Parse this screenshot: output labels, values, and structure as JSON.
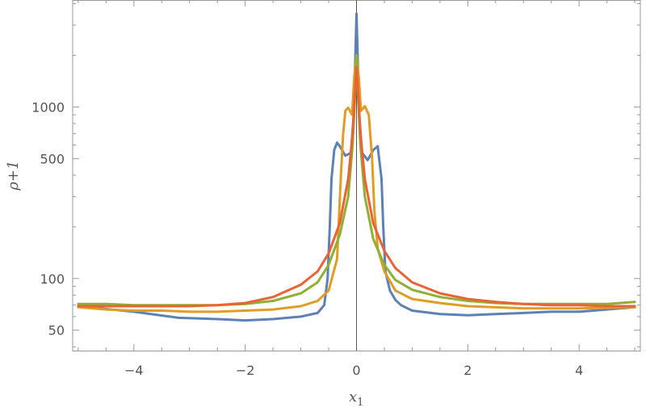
{
  "chart_data": {
    "type": "line",
    "title": "",
    "xlabel": "x",
    "xlabel_subscript": "1",
    "ylabel": "ρ+1",
    "xlim": [
      -5.1,
      5.1
    ],
    "ylim": [
      38,
      4200
    ],
    "yscale": "log",
    "grid": false,
    "legend": "none",
    "x_ticks": [
      -4,
      -2,
      0,
      2,
      4
    ],
    "x_tick_labels": [
      "−4",
      "−2",
      "0",
      "2",
      "4"
    ],
    "y_ticks": [
      50,
      100,
      500,
      1000
    ],
    "y_tick_labels": [
      "50",
      "100",
      "500",
      "1000"
    ],
    "colors": [
      "#5e81b5",
      "#e19c24",
      "#8fb032",
      "#eb6235"
    ],
    "series": [
      {
        "color": "#5e81b5",
        "points": [
          [
            -5,
            69
          ],
          [
            -4,
            64
          ],
          [
            -3.2,
            59
          ],
          [
            -2.5,
            58
          ],
          [
            -2,
            57
          ],
          [
            -1.5,
            58
          ],
          [
            -1,
            60
          ],
          [
            -0.7,
            63
          ],
          [
            -0.58,
            70
          ],
          [
            -0.52,
            100
          ],
          [
            -0.48,
            200
          ],
          [
            -0.45,
            380
          ],
          [
            -0.4,
            560
          ],
          [
            -0.35,
            620
          ],
          [
            -0.3,
            590
          ],
          [
            -0.2,
            520
          ],
          [
            -0.1,
            540
          ],
          [
            -0.05,
            900
          ],
          [
            -0.02,
            2000
          ],
          [
            0,
            3500
          ],
          [
            0.02,
            2000
          ],
          [
            0.05,
            900
          ],
          [
            0.1,
            540
          ],
          [
            0.2,
            490
          ],
          [
            0.3,
            560
          ],
          [
            0.38,
            590
          ],
          [
            0.45,
            380
          ],
          [
            0.48,
            200
          ],
          [
            0.52,
            110
          ],
          [
            0.6,
            85
          ],
          [
            0.7,
            75
          ],
          [
            0.8,
            70
          ],
          [
            1,
            65
          ],
          [
            1.5,
            62
          ],
          [
            2,
            61
          ],
          [
            2.5,
            62
          ],
          [
            3,
            63
          ],
          [
            3.5,
            64
          ],
          [
            4,
            64
          ],
          [
            4.5,
            66
          ],
          [
            5,
            68
          ]
        ]
      },
      {
        "color": "#e19c24",
        "points": [
          [
            -5,
            68
          ],
          [
            -4.5,
            66
          ],
          [
            -4,
            65
          ],
          [
            -3.5,
            65
          ],
          [
            -3,
            64
          ],
          [
            -2.5,
            64
          ],
          [
            -2,
            65
          ],
          [
            -1.5,
            66
          ],
          [
            -1,
            69
          ],
          [
            -0.7,
            74
          ],
          [
            -0.5,
            85
          ],
          [
            -0.35,
            130
          ],
          [
            -0.28,
            400
          ],
          [
            -0.24,
            700
          ],
          [
            -0.2,
            950
          ],
          [
            -0.15,
            990
          ],
          [
            -0.08,
            900
          ],
          [
            -0.04,
            1500
          ],
          [
            0,
            2000
          ],
          [
            0.04,
            1500
          ],
          [
            0.08,
            950
          ],
          [
            0.15,
            1010
          ],
          [
            0.22,
            900
          ],
          [
            0.28,
            500
          ],
          [
            0.32,
            250
          ],
          [
            0.38,
            150
          ],
          [
            0.5,
            110
          ],
          [
            0.7,
            85
          ],
          [
            1,
            76
          ],
          [
            1.5,
            72
          ],
          [
            2,
            69
          ],
          [
            3,
            67
          ],
          [
            4,
            67
          ],
          [
            5,
            68
          ]
        ]
      },
      {
        "color": "#8fb032",
        "points": [
          [
            -5,
            71
          ],
          [
            -4.5,
            71
          ],
          [
            -4,
            70
          ],
          [
            -3.5,
            70
          ],
          [
            -3,
            70
          ],
          [
            -2.5,
            70
          ],
          [
            -2,
            71
          ],
          [
            -1.5,
            74
          ],
          [
            -1,
            82
          ],
          [
            -0.7,
            95
          ],
          [
            -0.5,
            120
          ],
          [
            -0.3,
            180
          ],
          [
            -0.15,
            300
          ],
          [
            -0.07,
            600
          ],
          [
            -0.03,
            1100
          ],
          [
            0,
            2000
          ],
          [
            0.03,
            1100
          ],
          [
            0.07,
            600
          ],
          [
            0.15,
            300
          ],
          [
            0.3,
            170
          ],
          [
            0.5,
            120
          ],
          [
            0.7,
            98
          ],
          [
            1,
            86
          ],
          [
            1.5,
            78
          ],
          [
            2,
            74
          ],
          [
            2.5,
            72
          ],
          [
            3,
            71
          ],
          [
            3.5,
            71
          ],
          [
            4,
            71
          ],
          [
            4.5,
            71
          ],
          [
            5,
            73
          ]
        ]
      },
      {
        "color": "#eb6235",
        "points": [
          [
            -5,
            69
          ],
          [
            -4.5,
            69
          ],
          [
            -4,
            69
          ],
          [
            -3.5,
            69
          ],
          [
            -3,
            69
          ],
          [
            -2.5,
            70
          ],
          [
            -2,
            72
          ],
          [
            -1.5,
            78
          ],
          [
            -1,
            92
          ],
          [
            -0.7,
            110
          ],
          [
            -0.5,
            140
          ],
          [
            -0.3,
            210
          ],
          [
            -0.15,
            380
          ],
          [
            -0.07,
            700
          ],
          [
            -0.03,
            1200
          ],
          [
            0,
            1700
          ],
          [
            0.03,
            1200
          ],
          [
            0.07,
            700
          ],
          [
            0.15,
            380
          ],
          [
            0.3,
            210
          ],
          [
            0.5,
            145
          ],
          [
            0.7,
            115
          ],
          [
            1,
            95
          ],
          [
            1.5,
            82
          ],
          [
            2,
            76
          ],
          [
            2.5,
            73
          ],
          [
            3,
            71
          ],
          [
            3.5,
            70
          ],
          [
            4,
            70
          ],
          [
            4.5,
            69
          ],
          [
            5,
            69
          ]
        ]
      }
    ]
  }
}
